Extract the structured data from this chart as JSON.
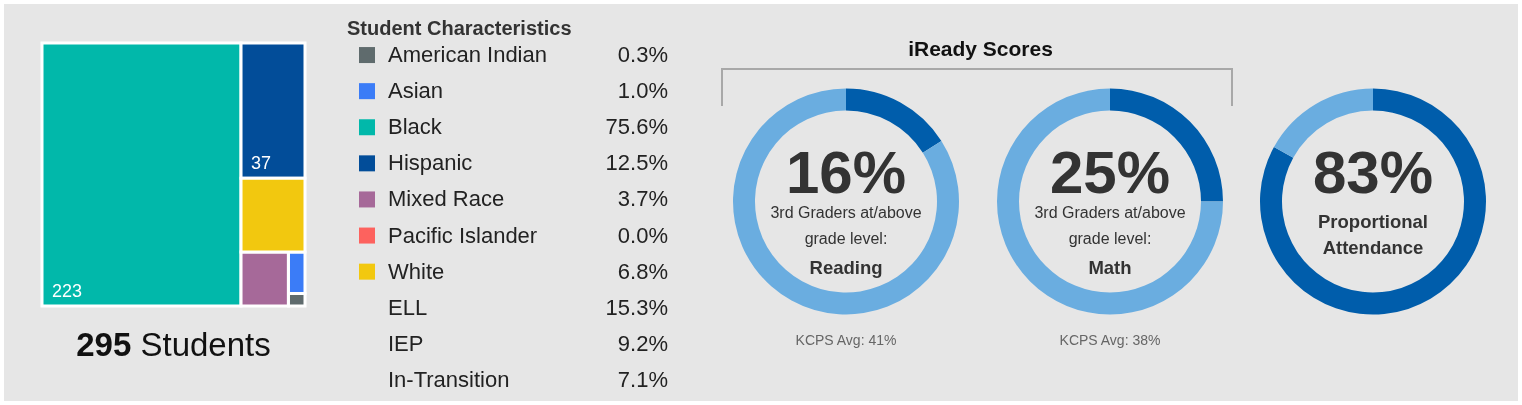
{
  "chart_data": [
    {
      "type": "other",
      "title": "Student Characteristics",
      "categories": [
        "American Indian",
        "Asian",
        "Black",
        "Hispanic",
        "Mixed Race",
        "Pacific Islander",
        "White",
        "ELL",
        "IEP",
        "In-Transition"
      ],
      "values": [
        0.3,
        1.0,
        75.6,
        12.5,
        3.7,
        0.0,
        6.8,
        15.3,
        9.2,
        7.1
      ],
      "colors": [
        "#5f6b6d",
        "#3b7cf7",
        "#01b8aa",
        "#024d99",
        "#a66999",
        "#fd625e",
        "#f2c80f",
        null,
        null,
        null
      ],
      "value_labels": [
        "0.3%",
        "1.0%",
        "75.6%",
        "12.5%",
        "3.7%",
        "0.0%",
        "6.8%",
        "15.3%",
        "9.2%",
        "7.1%"
      ],
      "annotations": [
        {
          "text": "223",
          "x": "Black"
        },
        {
          "text": "37",
          "x": "Hispanic"
        },
        "295 Students"
      ]
    },
    {
      "type": "other",
      "title": "iReady Scores"
    },
    {
      "type": "donut",
      "title": "Reading",
      "subtitle": "3rd Graders at/above grade level:",
      "categories": [
        null,
        null
      ],
      "values": [
        16,
        84
      ],
      "colors": [
        "#005dab",
        "#6aade0"
      ],
      "value_labels": [
        "16%",
        null
      ],
      "annotations": [
        "KCPS Avg: 41%"
      ]
    },
    {
      "type": "donut",
      "title": "Math",
      "subtitle": "3rd Graders at/above grade level:",
      "categories": [
        null,
        null
      ],
      "values": [
        25,
        75
      ],
      "colors": [
        "#005dab",
        "#6aade0"
      ],
      "value_labels": [
        "25%",
        null
      ],
      "annotations": [
        "KCPS Avg: 38%"
      ]
    },
    {
      "type": "donut",
      "title": "Proportional Attendance",
      "categories": [
        null,
        null
      ],
      "values": [
        83,
        17
      ],
      "colors": [
        "#005dab",
        "#6aade0"
      ],
      "value_labels": [
        "83%",
        null
      ]
    }
  ]
}
